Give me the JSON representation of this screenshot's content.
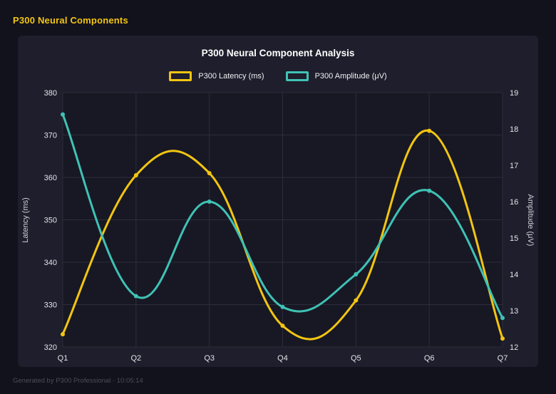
{
  "header": {
    "title": "P300 Neural Components"
  },
  "footer": {
    "text": "Generated by P300 Professional · 10:05:14"
  },
  "colors": {
    "page_background": "#12121d",
    "panel_background": "#1e1e2c",
    "plot_background": "#181824",
    "grid": "#2c2c3c",
    "tick_text": "#e4e4ea",
    "axis_title_text": "#cfcfd8",
    "title_text": "#ffffff",
    "footer_text": "#4d4d59",
    "latency_accent": "#f2c511",
    "amplitude_accent": "#3fc2b5"
  },
  "chart_data": {
    "type": "line",
    "title": "P300 Neural Component Analysis",
    "categories": [
      "Q1",
      "Q2",
      "Q3",
      "Q4",
      "Q5",
      "Q6",
      "Q7"
    ],
    "series": [
      {
        "name": "P300 Latency (ms)",
        "axis": "left",
        "color": "#f2c511",
        "values": [
          323,
          360.5,
          361,
          325,
          331,
          371,
          322
        ]
      },
      {
        "name": "P300 Amplitude (μV)",
        "axis": "right",
        "color": "#3fc2b5",
        "values": [
          18.4,
          13.4,
          16.0,
          13.1,
          14.0,
          16.3,
          12.8
        ]
      }
    ],
    "left_axis": {
      "label": "Latency (ms)",
      "min": 320,
      "max": 380,
      "step": 10
    },
    "right_axis": {
      "label": "Amplitude (μV)",
      "min": 12,
      "max": 19,
      "step": 1
    },
    "grid": true,
    "legend_position": "top",
    "curve": "smooth"
  }
}
